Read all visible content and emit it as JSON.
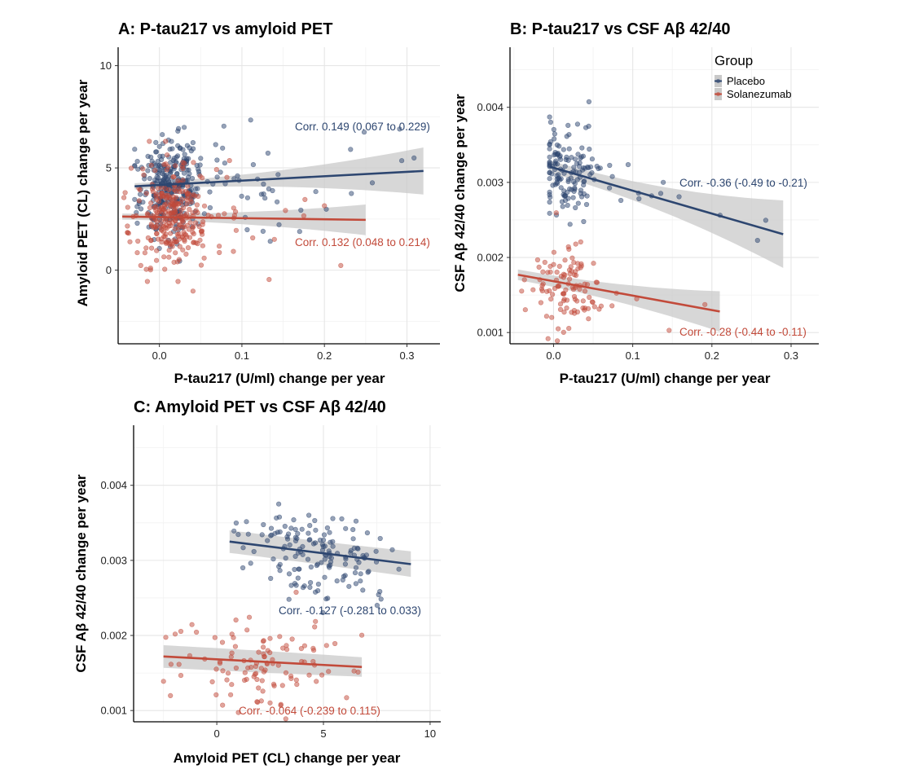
{
  "colors": {
    "placebo": "#2d4670",
    "solanezumab": "#c24a3a",
    "band": "#c9c9c9"
  },
  "legend": {
    "title": "Group",
    "placebo_label": "Placebo",
    "solanezumab_label": "Solanezumab"
  },
  "chart_data": [
    {
      "id": "A",
      "type": "scatter",
      "title": "A: P-tau217 vs amyloid PET",
      "xlabel": "P-tau217 (U/ml) change per year",
      "ylabel": "Amyloid PET (CL) change per year",
      "xlim": [
        -0.05,
        0.34
      ],
      "ylim": [
        -3.6,
        10.9
      ],
      "xticks": [
        0.0,
        0.1,
        0.2,
        0.3
      ],
      "yticks": [
        0,
        5,
        10
      ],
      "x_tick_labels": [
        "0.0",
        "0.1",
        "0.2",
        "0.3"
      ],
      "y_tick_labels": [
        "0",
        "5",
        "10"
      ],
      "grid": true,
      "series": [
        {
          "name": "Placebo",
          "n_points": 340,
          "x_range": [
            -0.03,
            0.32
          ],
          "y_center": 4.3,
          "fit": {
            "x": [
              -0.03,
              0.32
            ],
            "y": [
              4.1,
              4.85
            ],
            "ci_half_start": 0.15,
            "ci_half_end": 1.15
          },
          "corr": "Corr. 0.149 (0.067 to 0.229)"
        },
        {
          "name": "Solanezumab",
          "n_points": 300,
          "x_range": [
            -0.045,
            0.25
          ],
          "y_center": 2.6,
          "fit": {
            "x": [
              -0.045,
              0.25
            ],
            "y": [
              2.62,
              2.46
            ],
            "ci_half_start": 0.15,
            "ci_half_end": 0.75
          },
          "corr": "Corr. 0.132 (0.048 to 0.214)"
        }
      ]
    },
    {
      "id": "B",
      "type": "scatter",
      "title": "B: P-tau217 vs CSF Aβ 42/40",
      "xlabel": "P-tau217 (U/ml) change per year",
      "ylabel": "CSF Aβ 42/40 change per year",
      "xlim": [
        -0.055,
        0.335
      ],
      "ylim": [
        0.00085,
        0.0048
      ],
      "xticks": [
        0.0,
        0.1,
        0.2,
        0.3
      ],
      "yticks": [
        0.001,
        0.002,
        0.003,
        0.004
      ],
      "x_tick_labels": [
        "0.0",
        "0.1",
        "0.2",
        "0.3"
      ],
      "y_tick_labels": [
        "0.001",
        "0.002",
        "0.003",
        "0.004"
      ],
      "grid": true,
      "legend_position": "top-right",
      "series": [
        {
          "name": "Placebo",
          "n_points": 150,
          "x_range": [
            -0.005,
            0.29
          ],
          "y_center": 0.0031,
          "fit": {
            "x": [
              -0.005,
              0.29
            ],
            "y": [
              0.00321,
              0.00231
            ],
            "ci_half_start": 8e-05,
            "ci_half_end": 0.00045
          },
          "corr": "Corr. -0.36 (-0.49 to -0.21)"
        },
        {
          "name": "Solanezumab",
          "n_points": 110,
          "x_range": [
            -0.045,
            0.21
          ],
          "y_center": 0.00158,
          "fit": {
            "x": [
              -0.045,
              0.21
            ],
            "y": [
              0.00177,
              0.00128
            ],
            "ci_half_start": 7e-05,
            "ci_half_end": 0.00027
          },
          "corr": "Corr. -0.28 (-0.44 to -0.11)"
        }
      ]
    },
    {
      "id": "C",
      "type": "scatter",
      "title": "C: Amyloid PET vs CSF Aβ 42/40",
      "xlabel": "Amyloid PET (CL) change per year",
      "ylabel": "CSF Aβ 42/40 change per year",
      "xlim": [
        -3.9,
        10.5
      ],
      "ylim": [
        0.00085,
        0.0048
      ],
      "xticks": [
        0,
        5,
        10
      ],
      "yticks": [
        0.001,
        0.002,
        0.003,
        0.004
      ],
      "x_tick_labels": [
        "0",
        "5",
        "10"
      ],
      "y_tick_labels": [
        "0.001",
        "0.002",
        "0.003",
        "0.004"
      ],
      "grid": true,
      "series": [
        {
          "name": "Placebo",
          "n_points": 150,
          "x_range": [
            0.6,
            9.1
          ],
          "y_center": 0.0031,
          "fit": {
            "x": [
              0.6,
              9.1
            ],
            "y": [
              0.00325,
              0.00295
            ],
            "ci_half_start": 0.00015,
            "ci_half_end": 0.00017
          },
          "corr": "Corr. -0.127 (-0.281 to  0.033)"
        },
        {
          "name": "Solanezumab",
          "n_points": 110,
          "x_range": [
            -2.5,
            6.8
          ],
          "y_center": 0.00163,
          "fit": {
            "x": [
              -2.5,
              6.8
            ],
            "y": [
              0.00172,
              0.00158
            ],
            "ci_half_start": 0.00015,
            "ci_half_end": 0.00013
          },
          "corr": "Corr. -0.064 (-0.239 to  0.115)"
        }
      ]
    }
  ]
}
